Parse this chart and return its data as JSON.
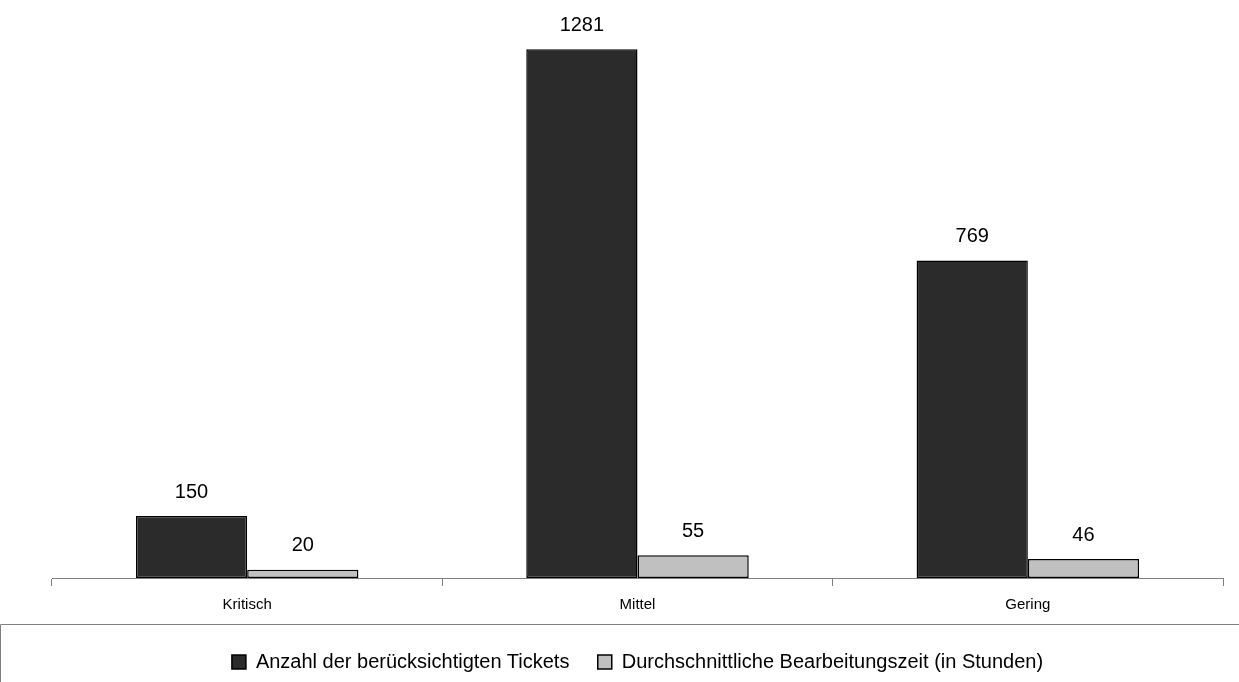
{
  "chart_data": {
    "type": "bar",
    "categories": [
      "Kritisch",
      "Mittel",
      "Gering"
    ],
    "series": [
      {
        "name": "Anzahl der berücksichtigten Tickets",
        "color": "#2b2b2b",
        "values": [
          150,
          1281,
          769
        ]
      },
      {
        "name": "Durchschnittliche Bearbeitungszeit (in Stunden)",
        "color": "#c0c0c0",
        "values": [
          20,
          55,
          46
        ]
      }
    ],
    "data_labels": true,
    "legend": "bottom",
    "grid": false
  }
}
